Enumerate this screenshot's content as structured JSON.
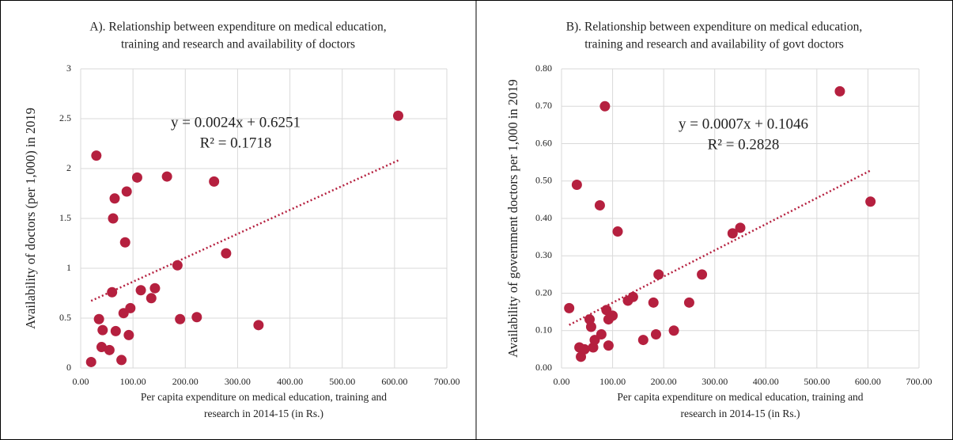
{
  "chart_data": [
    {
      "type": "scatter",
      "title": [
        "A). Relationship between expenditure on medical education,",
        "training and research and availability of doctors"
      ],
      "x_label": [
        "Per capita expenditure on medical education, training and",
        "research in 2014-15 (in Rs.)"
      ],
      "y_label": "Availability of doctors (per 1,000) in 2019",
      "x": [
        20,
        30,
        35,
        40,
        42,
        55,
        60,
        62,
        65,
        67,
        78,
        82,
        85,
        88,
        92,
        95,
        108,
        115,
        135,
        142,
        165,
        185,
        190,
        222,
        255,
        278,
        340,
        607
      ],
      "values": [
        0.06,
        2.13,
        0.49,
        0.21,
        0.38,
        0.18,
        0.76,
        1.5,
        1.7,
        0.37,
        0.08,
        0.55,
        1.26,
        1.77,
        0.33,
        0.6,
        1.91,
        0.78,
        0.7,
        0.8,
        1.92,
        1.03,
        0.49,
        0.51,
        1.87,
        1.15,
        0.43,
        2.53
      ],
      "color": "#b5203f",
      "xlim": [
        0,
        700
      ],
      "xticks": [
        {
          "value": 0,
          "label": "0.00"
        },
        {
          "value": 100,
          "label": "100.00"
        },
        {
          "value": 200,
          "label": "200.00"
        },
        {
          "value": 300,
          "label": "300.00"
        },
        {
          "value": 400,
          "label": "400.00"
        },
        {
          "value": 500,
          "label": "500.00"
        },
        {
          "value": 600,
          "label": "600.00"
        },
        {
          "value": 700,
          "label": "700.00"
        }
      ],
      "ylim": [
        0,
        3
      ],
      "yticks": [
        0,
        0.5,
        1,
        1.5,
        2,
        2.5,
        3
      ],
      "grid": true,
      "trendline": {
        "label": "y = 0.0024x + 0.6251",
        "r2_label": "R² = 0.1718",
        "slope": 0.0024,
        "intercept": 0.6251
      }
    },
    {
      "type": "scatter",
      "title": [
        "B). Relationship between expenditure on medical education,",
        "training and research and availability of govt doctors"
      ],
      "x_label": [
        "Per capita expenditure on medical education, training and",
        "research in 2014-15 (in Rs.)"
      ],
      "y_label": "Availability of government doctors per 1,000 in 2019",
      "x": [
        15,
        30,
        35,
        38,
        45,
        55,
        58,
        62,
        65,
        75,
        78,
        85,
        88,
        92,
        92,
        100,
        110,
        130,
        140,
        160,
        180,
        185,
        190,
        220,
        250,
        275,
        335,
        350,
        545,
        605
      ],
      "values": [
        0.16,
        0.49,
        0.055,
        0.03,
        0.05,
        0.13,
        0.11,
        0.055,
        0.075,
        0.435,
        0.09,
        0.7,
        0.155,
        0.06,
        0.13,
        0.14,
        0.365,
        0.18,
        0.19,
        0.075,
        0.175,
        0.09,
        0.25,
        0.1,
        0.175,
        0.25,
        0.36,
        0.375,
        0.74,
        0.445
      ],
      "color": "#b5203f",
      "xlim": [
        0,
        700
      ],
      "xticks": [
        {
          "value": 0,
          "label": "0.00"
        },
        {
          "value": 100,
          "label": "100.00"
        },
        {
          "value": 200,
          "label": "200.00"
        },
        {
          "value": 300,
          "label": "300.00"
        },
        {
          "value": 400,
          "label": "400.00"
        },
        {
          "value": 500,
          "label": "500.00"
        },
        {
          "value": 600,
          "label": "600.00"
        },
        {
          "value": 700,
          "label": "700.00"
        }
      ],
      "ylim": [
        0,
        0.8
      ],
      "yticks": [
        {
          "value": 0,
          "label": "0.00"
        },
        {
          "value": 0.1,
          "label": "0.10"
        },
        {
          "value": 0.2,
          "label": "0.20"
        },
        {
          "value": 0.3,
          "label": "0.30"
        },
        {
          "value": 0.4,
          "label": "0.40"
        },
        {
          "value": 0.5,
          "label": "0.50"
        },
        {
          "value": 0.6,
          "label": "0.60"
        },
        {
          "value": 0.7,
          "label": "0.70"
        },
        {
          "value": 0.8,
          "label": "0.80"
        }
      ],
      "grid": true,
      "trendline": {
        "label": "y = 0.0007x + 0.1046",
        "r2_label": "R² = 0.2828",
        "slope": 0.0007,
        "intercept": 0.1046
      }
    }
  ]
}
